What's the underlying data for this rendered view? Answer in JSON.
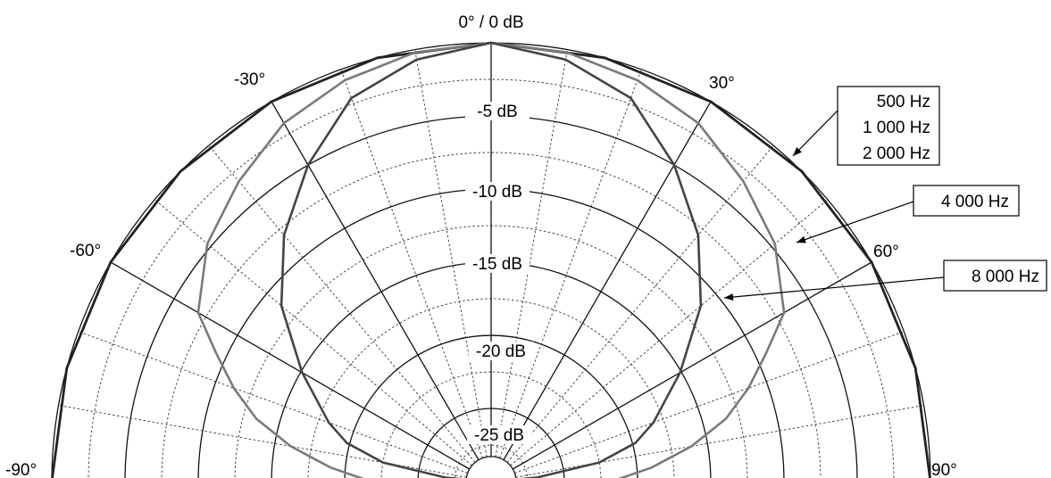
{
  "chart_data": {
    "type": "polar",
    "title": "",
    "radial_axis": {
      "unit": "dB",
      "range": [
        -30,
        0
      ],
      "major_rings": [
        0,
        -5,
        -10,
        -15,
        -20,
        -25
      ],
      "minor_rings": [
        -2.5,
        -7.5,
        -12.5,
        -17.5,
        -22.5,
        -27.5
      ],
      "ring_labels": [
        "0° / 0 dB",
        "-5 dB",
        "-10 dB",
        "-15 dB",
        "-20 dB",
        "-25 dB"
      ]
    },
    "angular_axis": {
      "unit": "deg",
      "range": [
        -90,
        90
      ],
      "major_angles": [
        -90,
        -60,
        -30,
        0,
        30,
        60,
        90
      ],
      "minor_step_deg": 10,
      "angle_labels": [
        "-90°",
        "-60°",
        "-30°",
        "30°",
        "60°",
        "90°"
      ]
    },
    "grid": true,
    "series": [
      {
        "name": "500 Hz / 1 000 Hz / 2 000 Hz",
        "color": "#222222",
        "angles_deg": [
          -90,
          -75,
          -60,
          -45,
          -30,
          -15,
          0,
          15,
          30,
          45,
          60,
          75,
          90
        ],
        "values_db": [
          0,
          0,
          0,
          0,
          0,
          0,
          0,
          0,
          0,
          0,
          0,
          0,
          0
        ]
      },
      {
        "name": "4 000 Hz",
        "color": "#7a7a7a",
        "angles_deg": [
          -90,
          -85,
          -80,
          -75,
          -70,
          -65,
          -60,
          -50,
          -40,
          -30,
          -20,
          -10,
          0,
          10,
          20,
          30,
          40,
          50,
          60,
          65,
          70,
          75,
          80,
          85,
          90
        ],
        "values_db": [
          -21.8,
          -19.0,
          -16.1,
          -13.4,
          -11.3,
          -9.3,
          -6.9,
          -4.7,
          -3.2,
          -1.7,
          -0.8,
          -0.2,
          0,
          -0.2,
          -0.8,
          -1.7,
          -3.2,
          -4.7,
          -6.9,
          -9.3,
          -11.3,
          -13.4,
          -16.1,
          -19.0,
          -21.8
        ]
      },
      {
        "name": "8 000 Hz",
        "color": "#444444",
        "angles_deg": [
          -90,
          -85,
          -80,
          -75,
          -70,
          -60,
          -50,
          -40,
          -30,
          -20,
          -10,
          0,
          10,
          20,
          30,
          40,
          50,
          60,
          70,
          75,
          80,
          85,
          90
        ],
        "values_db": [
          -29.9,
          -26.9,
          -22.5,
          -19.8,
          -18.2,
          -15.1,
          -11.3,
          -8.0,
          -5.0,
          -2.1,
          -0.7,
          0,
          -0.7,
          -2.1,
          -5.0,
          -8.0,
          -11.3,
          -15.1,
          -18.2,
          -19.8,
          -22.5,
          -26.9,
          -29.9
        ]
      }
    ],
    "callouts": [
      {
        "lines": [
          "500 Hz",
          "1 000 Hz",
          "2 000 Hz"
        ],
        "series_index": 0
      },
      {
        "lines": [
          "4 000 Hz"
        ],
        "series_index": 1
      },
      {
        "lines": [
          "8 000 Hz"
        ],
        "series_index": 2
      }
    ]
  }
}
